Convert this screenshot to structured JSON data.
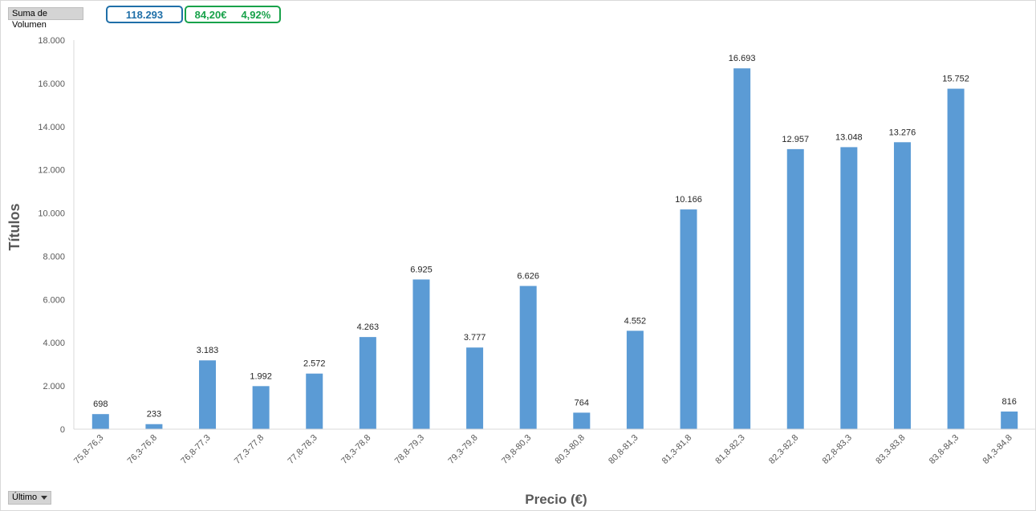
{
  "controls": {
    "sum_field_label": "Suma de Volumen",
    "filter_field_label": "Último"
  },
  "kpis": {
    "total_volume": "118.293",
    "last_price": "84,20€",
    "change_pct": "4,92%"
  },
  "colors": {
    "bar": "#5b9bd5",
    "kpi_total": "#1f6fa8",
    "kpi_price": "#18a24a"
  },
  "chart_data": {
    "type": "bar",
    "xlabel": "Precio (€)",
    "ylabel": "Títulos",
    "ylim": [
      0,
      18000
    ],
    "yticks": [
      0,
      2000,
      4000,
      6000,
      8000,
      10000,
      12000,
      14000,
      16000,
      18000
    ],
    "ytick_labels": [
      "0",
      "2.000",
      "4.000",
      "6.000",
      "8.000",
      "10.000",
      "12.000",
      "14.000",
      "16.000",
      "18.000"
    ],
    "grid": false,
    "legend": "none",
    "categories": [
      "75,8-76,3",
      "76,3-76,8",
      "76,8-77,3",
      "77,3-77,8",
      "77,8-78,3",
      "78,3-78,8",
      "78,8-79,3",
      "79,3-79,8",
      "79,8-80,3",
      "80,3-80,8",
      "80,8-81,3",
      "81,3-81,8",
      "81,8-82,3",
      "82,3-82,8",
      "82,8-83,3",
      "83,3-83,8",
      "83,8-84,3",
      "84,3-84,8"
    ],
    "values": [
      698,
      233,
      3183,
      1992,
      2572,
      4263,
      6925,
      3777,
      6626,
      764,
      4552,
      10166,
      16693,
      12957,
      13048,
      13276,
      15752,
      816
    ],
    "value_labels": [
      "698",
      "233",
      "3.183",
      "1.992",
      "2.572",
      "4.263",
      "6.925",
      "3.777",
      "6.626",
      "764",
      "4.552",
      "10.166",
      "16.693",
      "12.957",
      "13.048",
      "13.276",
      "15.752",
      "816"
    ]
  }
}
